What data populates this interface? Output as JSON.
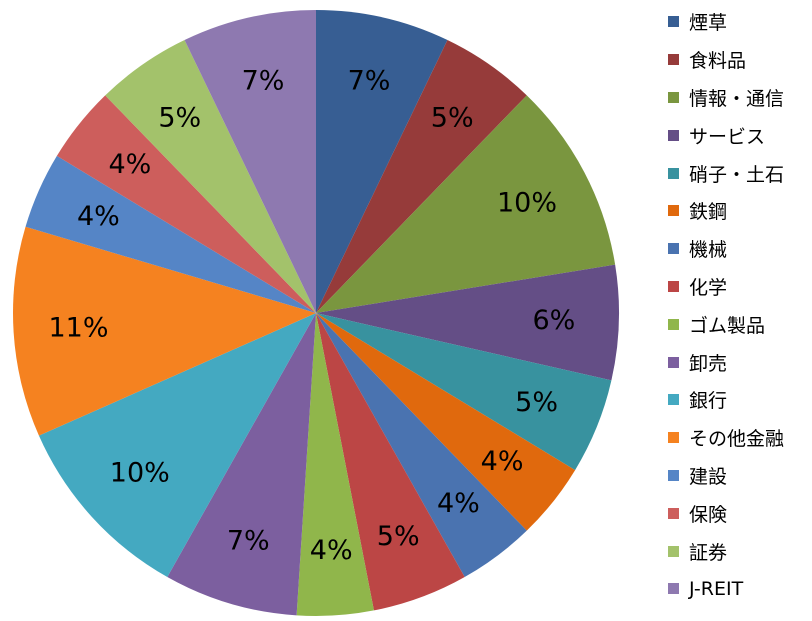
{
  "chart_data": {
    "type": "pie",
    "series": [
      {
        "name": "煙草",
        "value": 7,
        "label": "7%",
        "color": "#375E93"
      },
      {
        "name": "食料品",
        "value": 5,
        "label": "5%",
        "color": "#963B3A"
      },
      {
        "name": "情報・通信",
        "value": 10,
        "label": "10%",
        "color": "#7A963F"
      },
      {
        "name": "サービス",
        "value": 6,
        "label": "6%",
        "color": "#644E86"
      },
      {
        "name": "硝子・土石",
        "value": 5,
        "label": "5%",
        "color": "#38929F"
      },
      {
        "name": "鉄鋼",
        "value": 4,
        "label": "4%",
        "color": "#E0690D"
      },
      {
        "name": "機械",
        "value": 4,
        "label": "4%",
        "color": "#4A73B0"
      },
      {
        "name": "化学",
        "value": 5,
        "label": "5%",
        "color": "#BC4645"
      },
      {
        "name": "ゴム製品",
        "value": 4,
        "label": "4%",
        "color": "#90B64B"
      },
      {
        "name": "卸売",
        "value": 7,
        "label": "7%",
        "color": "#7C5F9F"
      },
      {
        "name": "銀行",
        "value": 10,
        "label": "10%",
        "color": "#44A9C1"
      },
      {
        "name": "その他金融",
        "value": 11,
        "label": "11%",
        "color": "#F58220"
      },
      {
        "name": "建設",
        "value": 4,
        "label": "4%",
        "color": "#5585C6"
      },
      {
        "name": "保険",
        "value": 4,
        "label": "4%",
        "color": "#CD5E5C"
      },
      {
        "name": "証券",
        "value": 5,
        "label": "5%",
        "color": "#A3C26B"
      },
      {
        "name": "J-REIT",
        "value": 7,
        "label": "7%",
        "color": "#8E79B0"
      }
    ],
    "legend": {
      "position": "right"
    }
  }
}
